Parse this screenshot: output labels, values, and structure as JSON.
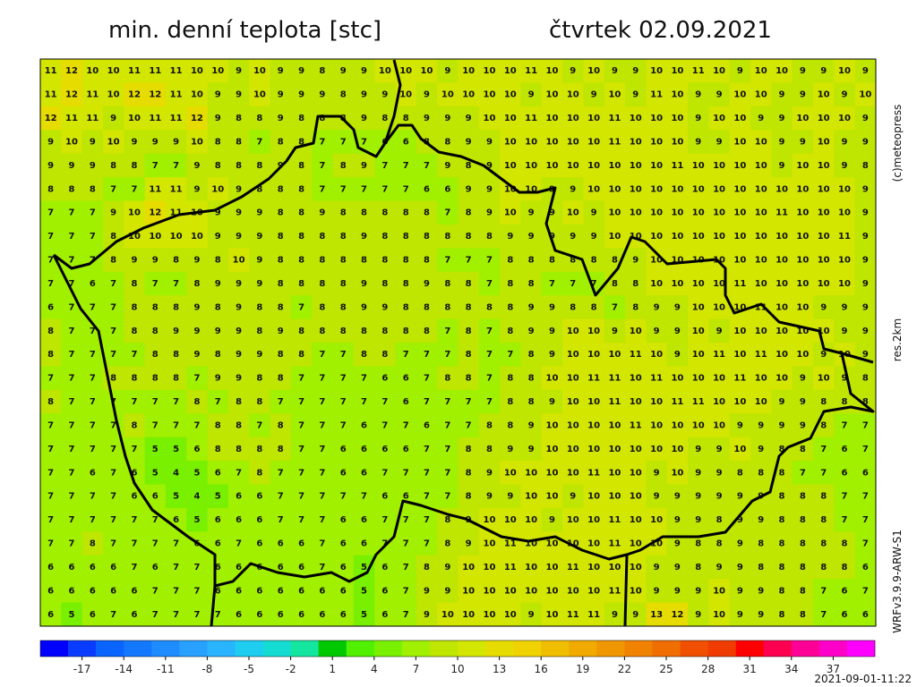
{
  "header": {
    "title": "min. denní teplota [stc]",
    "date": "čtvrtek 02.09.2021"
  },
  "side": {
    "copyright": "(c)meteopress",
    "resolution": "res.2km",
    "model": "WRFv3.9.9-ARW-S1"
  },
  "footer": {
    "timestamp": "2021-09-01-11:22"
  },
  "colorbar": {
    "lim": [
      -20,
      40
    ],
    "step": 2,
    "ticks": [
      -17,
      -14,
      -11,
      -8,
      -5,
      -2,
      1,
      4,
      7,
      10,
      13,
      16,
      19,
      22,
      25,
      28,
      31,
      34,
      37
    ],
    "colors": [
      "#0000ff",
      "#0a3cff",
      "#0a64ff",
      "#1478ff",
      "#1e8cff",
      "#28a0ff",
      "#28b4ff",
      "#1ecdf0",
      "#14dcd2",
      "#14e6a0",
      "#00c800",
      "#50f000",
      "#78f000",
      "#a0f000",
      "#bee600",
      "#d2e600",
      "#e6dc00",
      "#f0d200",
      "#f0be00",
      "#f0aa00",
      "#f09600",
      "#f08200",
      "#f06e00",
      "#f05000",
      "#f03c00",
      "#ff0000",
      "#ff0050",
      "#ff0096",
      "#ff00c8",
      "#ff00ff"
    ]
  },
  "grid": {
    "rows": [
      [
        11,
        12,
        10,
        10,
        11,
        11,
        11,
        10,
        10,
        9,
        10,
        9,
        9,
        8,
        9,
        9,
        10,
        10,
        10,
        9,
        10,
        10,
        10,
        11,
        10,
        9,
        10,
        9,
        9,
        10,
        10,
        11,
        10,
        9,
        10,
        10,
        9,
        9,
        10,
        9
      ],
      [
        11,
        12,
        11,
        10,
        12,
        12,
        11,
        10,
        9,
        9,
        10,
        9,
        9,
        9,
        8,
        9,
        9,
        10,
        9,
        10,
        10,
        10,
        10,
        9,
        10,
        10,
        9,
        10,
        9,
        11,
        10,
        9,
        9,
        10,
        10,
        9,
        9,
        10,
        9,
        10
      ],
      [
        12,
        11,
        11,
        9,
        10,
        11,
        11,
        12,
        9,
        8,
        8,
        9,
        8,
        8,
        8,
        9,
        8,
        8,
        9,
        9,
        9,
        10,
        10,
        11,
        10,
        10,
        10,
        11,
        10,
        10,
        10,
        9,
        10,
        10,
        9,
        9,
        10,
        10,
        10,
        9
      ],
      [
        9,
        10,
        9,
        10,
        9,
        9,
        9,
        10,
        8,
        8,
        7,
        8,
        8,
        7,
        7,
        7,
        6,
        6,
        8,
        8,
        9,
        9,
        10,
        10,
        10,
        10,
        10,
        11,
        10,
        10,
        10,
        9,
        9,
        10,
        10,
        9,
        9,
        10,
        9,
        9
      ],
      [
        9,
        9,
        9,
        8,
        8,
        7,
        7,
        9,
        8,
        8,
        8,
        9,
        8,
        7,
        8,
        9,
        7,
        7,
        7,
        9,
        8,
        9,
        10,
        10,
        10,
        10,
        10,
        10,
        10,
        10,
        11,
        10,
        10,
        10,
        10,
        9,
        10,
        10,
        9,
        8
      ],
      [
        8,
        8,
        8,
        7,
        7,
        11,
        11,
        9,
        10,
        9,
        8,
        8,
        8,
        7,
        7,
        7,
        7,
        7,
        6,
        6,
        9,
        9,
        10,
        10,
        9,
        9,
        10,
        10,
        10,
        10,
        10,
        10,
        10,
        10,
        10,
        10,
        10,
        10,
        10,
        9
      ],
      [
        7,
        7,
        7,
        9,
        10,
        12,
        11,
        10,
        9,
        9,
        9,
        8,
        8,
        9,
        8,
        8,
        8,
        8,
        8,
        7,
        8,
        9,
        10,
        9,
        9,
        10,
        9,
        10,
        10,
        10,
        10,
        10,
        10,
        10,
        10,
        11,
        10,
        10,
        10,
        9
      ],
      [
        7,
        7,
        7,
        8,
        10,
        10,
        10,
        10,
        9,
        9,
        9,
        8,
        8,
        8,
        8,
        9,
        8,
        8,
        8,
        8,
        8,
        8,
        9,
        9,
        9,
        9,
        9,
        10,
        10,
        10,
        10,
        10,
        10,
        10,
        10,
        10,
        10,
        10,
        11,
        9
      ],
      [
        7,
        7,
        7,
        8,
        9,
        9,
        8,
        9,
        8,
        10,
        9,
        8,
        8,
        8,
        8,
        8,
        8,
        8,
        8,
        7,
        7,
        7,
        8,
        8,
        8,
        8,
        8,
        8,
        9,
        10,
        10,
        10,
        10,
        10,
        10,
        10,
        10,
        10,
        10,
        9
      ],
      [
        7,
        7,
        6,
        7,
        8,
        7,
        7,
        8,
        9,
        9,
        9,
        8,
        8,
        8,
        8,
        9,
        8,
        8,
        9,
        8,
        8,
        7,
        8,
        8,
        7,
        7,
        7,
        8,
        8,
        10,
        10,
        10,
        10,
        11,
        10,
        10,
        10,
        10,
        10,
        9
      ],
      [
        6,
        7,
        7,
        7,
        8,
        8,
        8,
        9,
        8,
        9,
        8,
        8,
        7,
        8,
        8,
        9,
        9,
        8,
        8,
        8,
        8,
        8,
        8,
        9,
        9,
        8,
        8,
        7,
        8,
        9,
        9,
        10,
        10,
        10,
        11,
        10,
        10,
        9,
        9,
        9
      ],
      [
        8,
        7,
        7,
        7,
        8,
        8,
        9,
        9,
        9,
        9,
        8,
        9,
        8,
        8,
        8,
        8,
        8,
        8,
        8,
        7,
        8,
        7,
        8,
        9,
        9,
        10,
        10,
        9,
        10,
        9,
        9,
        10,
        9,
        10,
        10,
        10,
        10,
        10,
        9,
        9
      ],
      [
        8,
        7,
        7,
        7,
        7,
        8,
        8,
        9,
        8,
        9,
        9,
        8,
        8,
        7,
        7,
        8,
        8,
        7,
        7,
        7,
        8,
        7,
        7,
        8,
        9,
        10,
        10,
        10,
        11,
        10,
        9,
        10,
        11,
        10,
        11,
        10,
        10,
        9,
        10,
        9
      ],
      [
        7,
        7,
        7,
        8,
        8,
        8,
        8,
        7,
        9,
        9,
        8,
        8,
        7,
        7,
        7,
        7,
        6,
        6,
        7,
        8,
        8,
        7,
        8,
        8,
        10,
        10,
        11,
        11,
        10,
        11,
        10,
        10,
        10,
        11,
        10,
        10,
        9,
        10,
        9,
        8
      ],
      [
        8,
        7,
        7,
        7,
        7,
        7,
        7,
        8,
        7,
        8,
        8,
        7,
        7,
        7,
        7,
        7,
        7,
        6,
        7,
        7,
        7,
        7,
        8,
        8,
        9,
        10,
        10,
        11,
        10,
        10,
        11,
        11,
        10,
        10,
        10,
        9,
        9,
        8,
        8,
        8
      ],
      [
        7,
        7,
        7,
        7,
        8,
        7,
        7,
        7,
        8,
        8,
        7,
        8,
        7,
        7,
        7,
        6,
        7,
        7,
        6,
        7,
        7,
        8,
        8,
        9,
        10,
        10,
        10,
        10,
        11,
        10,
        10,
        10,
        10,
        9,
        9,
        9,
        9,
        8,
        7,
        7
      ],
      [
        7,
        7,
        7,
        7,
        7,
        5,
        5,
        6,
        8,
        8,
        8,
        8,
        7,
        7,
        6,
        6,
        6,
        6,
        7,
        7,
        8,
        8,
        9,
        9,
        10,
        10,
        10,
        10,
        10,
        10,
        10,
        9,
        9,
        10,
        9,
        8,
        8,
        7,
        6,
        7
      ],
      [
        7,
        7,
        6,
        7,
        6,
        5,
        4,
        5,
        6,
        7,
        8,
        7,
        7,
        7,
        6,
        6,
        7,
        7,
        7,
        7,
        8,
        9,
        10,
        10,
        10,
        10,
        11,
        10,
        10,
        9,
        10,
        9,
        9,
        8,
        8,
        8,
        7,
        7,
        6,
        6
      ],
      [
        7,
        7,
        7,
        7,
        6,
        6,
        5,
        4,
        5,
        6,
        6,
        7,
        7,
        7,
        7,
        7,
        6,
        6,
        7,
        7,
        8,
        9,
        9,
        10,
        10,
        9,
        10,
        10,
        10,
        9,
        9,
        9,
        9,
        9,
        9,
        8,
        8,
        8,
        7,
        7
      ],
      [
        7,
        7,
        7,
        7,
        7,
        7,
        6,
        5,
        6,
        6,
        6,
        7,
        7,
        7,
        6,
        6,
        7,
        7,
        7,
        8,
        9,
        10,
        10,
        10,
        9,
        10,
        10,
        11,
        10,
        10,
        9,
        9,
        8,
        9,
        9,
        8,
        8,
        8,
        7,
        7
      ],
      [
        7,
        7,
        8,
        7,
        7,
        7,
        7,
        6,
        6,
        7,
        6,
        6,
        6,
        7,
        6,
        6,
        7,
        7,
        7,
        8,
        9,
        10,
        11,
        10,
        10,
        10,
        10,
        11,
        10,
        10,
        9,
        8,
        8,
        9,
        8,
        8,
        8,
        8,
        8,
        7
      ],
      [
        6,
        6,
        6,
        6,
        7,
        6,
        7,
        7,
        6,
        6,
        6,
        6,
        6,
        7,
        6,
        5,
        6,
        7,
        8,
        9,
        10,
        10,
        11,
        10,
        10,
        11,
        10,
        10,
        10,
        9,
        9,
        8,
        9,
        9,
        8,
        8,
        8,
        8,
        8,
        6
      ],
      [
        6,
        6,
        6,
        6,
        6,
        7,
        7,
        7,
        6,
        6,
        6,
        6,
        6,
        6,
        6,
        5,
        6,
        7,
        9,
        9,
        10,
        10,
        10,
        10,
        10,
        10,
        10,
        11,
        10,
        9,
        9,
        9,
        10,
        9,
        9,
        8,
        8,
        7,
        6,
        7
      ],
      [
        6,
        5,
        6,
        7,
        6,
        7,
        7,
        7,
        7,
        6,
        6,
        6,
        6,
        6,
        6,
        5,
        6,
        7,
        9,
        10,
        10,
        10,
        10,
        9,
        10,
        11,
        11,
        9,
        9,
        13,
        12,
        9,
        10,
        9,
        9,
        8,
        8,
        7,
        6,
        6
      ]
    ]
  }
}
